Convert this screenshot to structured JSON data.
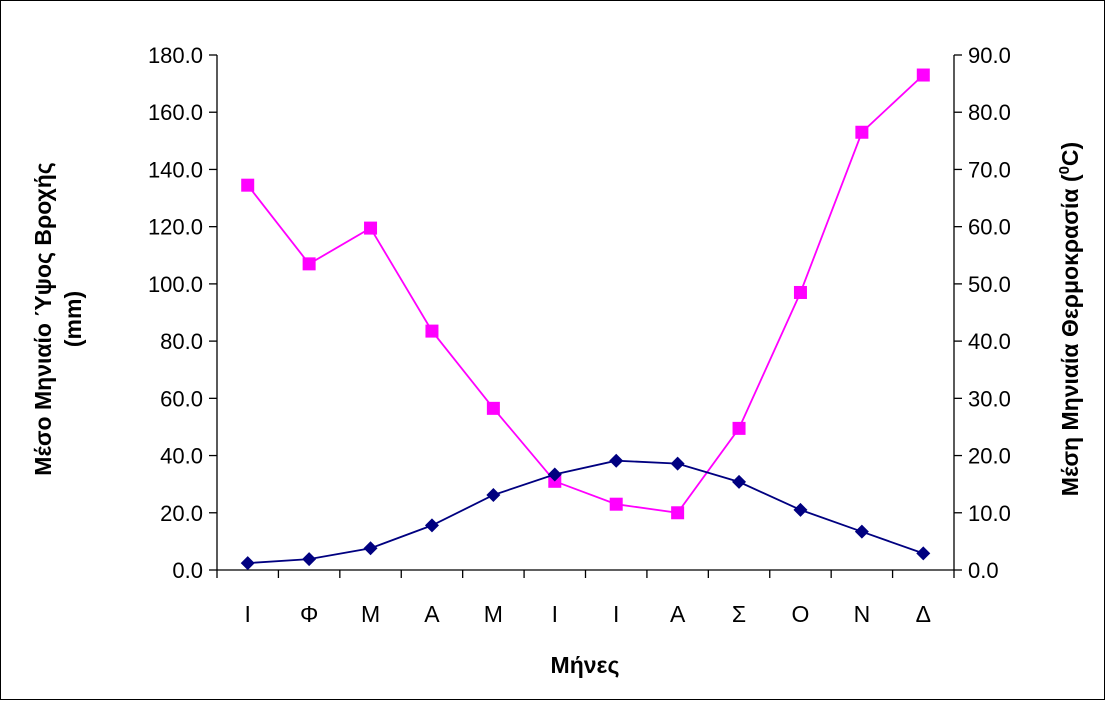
{
  "chart_data": {
    "type": "line",
    "categories": [
      "Ι",
      "Φ",
      "Μ",
      "Α",
      "Μ",
      "Ι",
      "Ι",
      "Α",
      "Σ",
      "Ο",
      "Ν",
      "Δ"
    ],
    "xlabel": "Μήνες",
    "ylabel_left_line1": "Μέσο Μηνιαίο Ύψος Βροχής",
    "ylabel_left_line2": "(mm)",
    "ylabel_right_main": "Μέση Μηνιαία Θερμοκρασία (",
    "ylabel_right_sup": "0",
    "ylabel_right_end": "C)",
    "ylim_left": [
      0,
      180
    ],
    "ylim_right": [
      0,
      90
    ],
    "left_ticks": [
      "0.0",
      "20.0",
      "40.0",
      "60.0",
      "80.0",
      "100.0",
      "120.0",
      "140.0",
      "160.0",
      "180.0"
    ],
    "right_ticks": [
      "0.0",
      "10.0",
      "20.0",
      "30.0",
      "40.0",
      "50.0",
      "60.0",
      "70.0",
      "80.0",
      "90.0"
    ],
    "series": [
      {
        "axis": "left",
        "color": "#FF00FF",
        "marker": "square",
        "values": [
          134.5,
          107,
          119.5,
          83.5,
          56.5,
          31,
          23,
          20,
          49.5,
          97,
          153,
          173
        ]
      },
      {
        "axis": "right",
        "color": "#000080",
        "marker": "diamond",
        "values": [
          1.2,
          1.9,
          3.8,
          7.8,
          13.1,
          16.7,
          19.1,
          18.6,
          15.4,
          10.5,
          6.7,
          2.9
        ]
      }
    ],
    "grid": false,
    "legend": "none"
  }
}
